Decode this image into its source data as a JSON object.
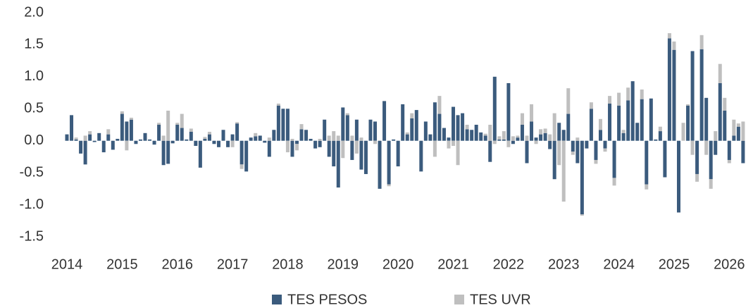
{
  "chart_data": {
    "type": "stacked_bar",
    "categories": [
      "2014",
      null,
      null,
      null,
      null,
      null,
      null,
      null,
      null,
      null,
      null,
      null,
      "2015",
      null,
      null,
      null,
      null,
      null,
      null,
      null,
      null,
      null,
      null,
      null,
      "2016",
      null,
      null,
      null,
      null,
      null,
      null,
      null,
      null,
      null,
      null,
      null,
      "2017",
      null,
      null,
      null,
      null,
      null,
      null,
      null,
      null,
      null,
      null,
      null,
      "2018",
      null,
      null,
      null,
      null,
      null,
      null,
      null,
      null,
      null,
      null,
      null,
      "2019",
      null,
      null,
      null,
      null,
      null,
      null,
      null,
      null,
      null,
      null,
      null,
      "2020",
      null,
      null,
      null,
      null,
      null,
      null,
      null,
      null,
      null,
      null,
      null,
      "2021",
      null,
      null,
      null,
      null,
      null,
      null,
      null,
      null,
      null,
      null,
      null,
      "2022",
      null,
      null,
      null,
      null,
      null,
      null,
      null,
      null,
      null,
      null,
      null,
      "2023",
      null,
      null,
      null,
      null,
      null,
      null,
      null,
      null,
      null,
      null,
      null,
      "2024",
      null,
      null,
      null,
      null,
      null,
      null,
      null,
      null,
      null,
      null,
      null,
      "2025",
      null,
      null,
      null,
      null,
      null,
      null,
      null,
      null,
      null,
      null,
      null,
      "2026",
      null,
      null,
      null
    ],
    "series": [
      {
        "name": "TES PESOS",
        "color": "#3b5b7d",
        "values": [
          0.1,
          0.4,
          0.02,
          -0.2,
          -0.37,
          0.1,
          -0.02,
          0.12,
          -0.18,
          0.1,
          -0.14,
          0.03,
          0.42,
          0.3,
          0.33,
          -0.05,
          0.02,
          0.12,
          0.02,
          -0.06,
          0.25,
          -0.38,
          -0.36,
          -0.04,
          0.25,
          0.2,
          0.02,
          0.14,
          -0.08,
          -0.42,
          0.03,
          0.1,
          -0.05,
          -0.1,
          0.17,
          -0.1,
          0.1,
          0.27,
          -0.37,
          -0.48,
          0.05,
          0.07,
          0.08,
          -0.03,
          -0.25,
          0.17,
          0.55,
          0.5,
          0.5,
          -0.25,
          -0.05,
          0.18,
          0.17,
          0.03,
          -0.12,
          -0.1,
          0.33,
          -0.25,
          -0.4,
          -0.73,
          0.52,
          0.4,
          -0.3,
          0.33,
          -0.45,
          -0.52,
          0.33,
          0.3,
          -0.75,
          0.62,
          -0.68,
          0.02,
          -0.4,
          0.57,
          0.1,
          0.35,
          0.48,
          -0.48,
          0.3,
          0.1,
          0.6,
          0.42,
          0.2,
          0.05,
          0.53,
          0.4,
          0.43,
          0.18,
          0.17,
          0.25,
          0.13,
          0.08,
          -0.33,
          1.0,
          0.02,
          0.02,
          0.9,
          -0.05,
          0.05,
          0.25,
          -0.35,
          0.3,
          0.05,
          0.1,
          0.12,
          -0.13,
          -0.6,
          0.28,
          0.17,
          0.42,
          -0.17,
          -0.35,
          -1.15,
          -0.12,
          0.5,
          -0.3,
          0.17,
          -0.12,
          0.58,
          -0.58,
          0.55,
          0.12,
          0.63,
          0.93,
          0.28,
          0.65,
          -0.68,
          0.66,
          0.02,
          0.15,
          -0.57,
          1.6,
          1.42,
          -1.12,
          0,
          0.55,
          1.4,
          -0.52,
          1.43,
          0.67,
          -0.6,
          -0.22,
          0.9,
          0.47,
          -0.3,
          0.08,
          0.22,
          -0.35
        ]
      },
      {
        "name": "TES UVR",
        "color": "#bfbfbf",
        "values": [
          0,
          0,
          0.03,
          0,
          0.08,
          0.05,
          0,
          0,
          0,
          0.08,
          0,
          0,
          0.04,
          -0.15,
          0.03,
          0,
          0,
          0,
          0,
          0,
          0.03,
          0.08,
          0.47,
          0,
          0.03,
          0.22,
          0,
          0.05,
          0,
          0,
          0.03,
          0.04,
          0,
          0,
          0,
          0,
          -0.1,
          0.02,
          -0.07,
          0,
          0,
          0.05,
          0,
          0,
          0.05,
          0,
          0.03,
          0,
          -0.18,
          0.03,
          -0.1,
          0.08,
          0,
          0,
          0,
          0.03,
          0,
          0.08,
          0.15,
          0.08,
          -0.27,
          0.03,
          0.08,
          -0.2,
          0.05,
          0,
          0,
          -0.05,
          0,
          0,
          -0.03,
          0,
          0,
          0,
          0.03,
          0.08,
          0,
          0,
          0,
          0,
          -0.25,
          0.28,
          0,
          -0.12,
          -0.08,
          -0.38,
          0,
          0.07,
          0,
          0,
          0,
          0.03,
          0.25,
          -0.05,
          0.05,
          0.13,
          -0.1,
          0.07,
          0.03,
          0.18,
          0.08,
          0.27,
          -0.05,
          0.08,
          0.07,
          0.1,
          0.43,
          -0.38,
          -0.95,
          0.4,
          -0.05,
          0.05,
          -0.02,
          0,
          0.1,
          -0.06,
          0.17,
          -0.05,
          0.12,
          -0.12,
          0.2,
          0.05,
          0.2,
          0,
          0,
          0.15,
          -0.08,
          0,
          0,
          0.07,
          0,
          0.08,
          0.13,
          0,
          0.28,
          0.02,
          -0.22,
          -0.12,
          0.22,
          -0.22,
          -0.15,
          0.15,
          0.3,
          0.2,
          -0.05,
          0.25,
          0.05,
          0.3
        ]
      }
    ],
    "ylim": [
      -1.5,
      2.0
    ],
    "yticks": [
      {
        "value": 2.0,
        "label": "2.0"
      },
      1.5,
      {
        "value": 1.0,
        "label": "1.0"
      },
      0.5,
      {
        "value": 0.0,
        "label": "0.0"
      },
      -0.5,
      {
        "value": -1.0,
        "label": "-1.0"
      },
      -1.5
    ],
    "legend": "bottom"
  }
}
